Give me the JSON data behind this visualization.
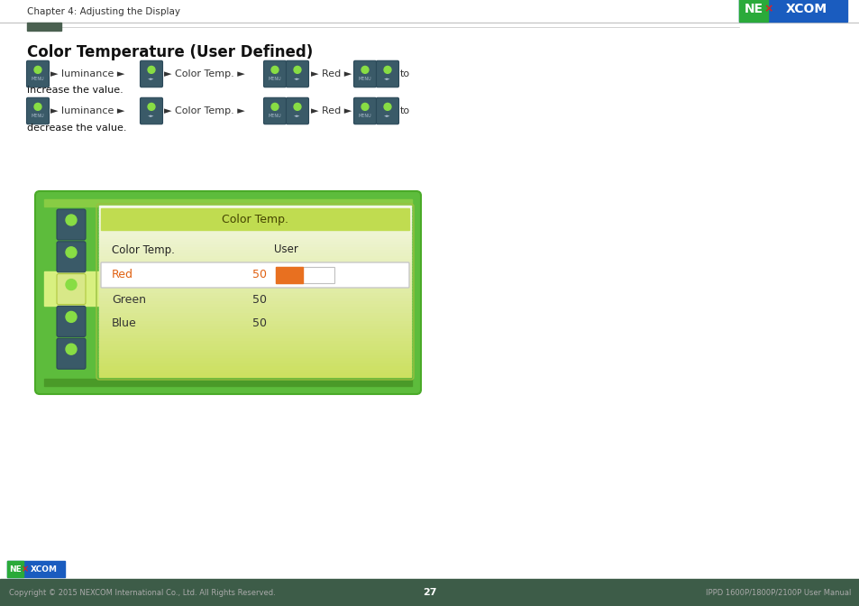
{
  "page_title": "Chapter 4: Adjusting the Display",
  "section_title": "Color Temperature (User Defined)",
  "menu_title": "Color Temp.",
  "col1_header": "Color Temp.",
  "col2_header": "User",
  "rows": [
    {
      "label": "Red",
      "value": "50",
      "highlight": true,
      "text_color": "#e06010"
    },
    {
      "label": "Green",
      "value": "50",
      "highlight": false,
      "text_color": "#333333"
    },
    {
      "label": "Blue",
      "value": "50",
      "highlight": false,
      "text_color": "#333333"
    }
  ],
  "outer_bg": "#5dbc3c",
  "outer_border": "#4aaa28",
  "top_strip_color": "#88cc44",
  "bottom_strip_color": "#4a9a28",
  "inner_bg_top": "#cce060",
  "inner_bg_bottom": "#f5f8e0",
  "header_bar_color": "#b8d832",
  "bar_filled_color": "#e87020",
  "bar_empty_color": "#ffffff",
  "nexcom_blue": "#1a5cbf",
  "nexcom_green": "#2aaa3a",
  "nexcom_red_x": "#dd2222",
  "footer_bg": "#3d5c48",
  "footer_text_color": "#aaaaaa",
  "footer_page": "27",
  "footer_right": "IPPD 1600P/1800P/2100P User Manual",
  "footer_copyright": "Copyright © 2015 NEXCOM International Co., Ltd. All Rights Reserved.",
  "accent_bar_color": "#4a6050",
  "icon_bg": "#3a5a68",
  "icon_border": "#2a4858",
  "icon_dot_color": "#88dd44",
  "icon_text_color": "#aabbcc",
  "selected_icon_bg": "#d8e888",
  "selected_icon_border": "#b0c840"
}
